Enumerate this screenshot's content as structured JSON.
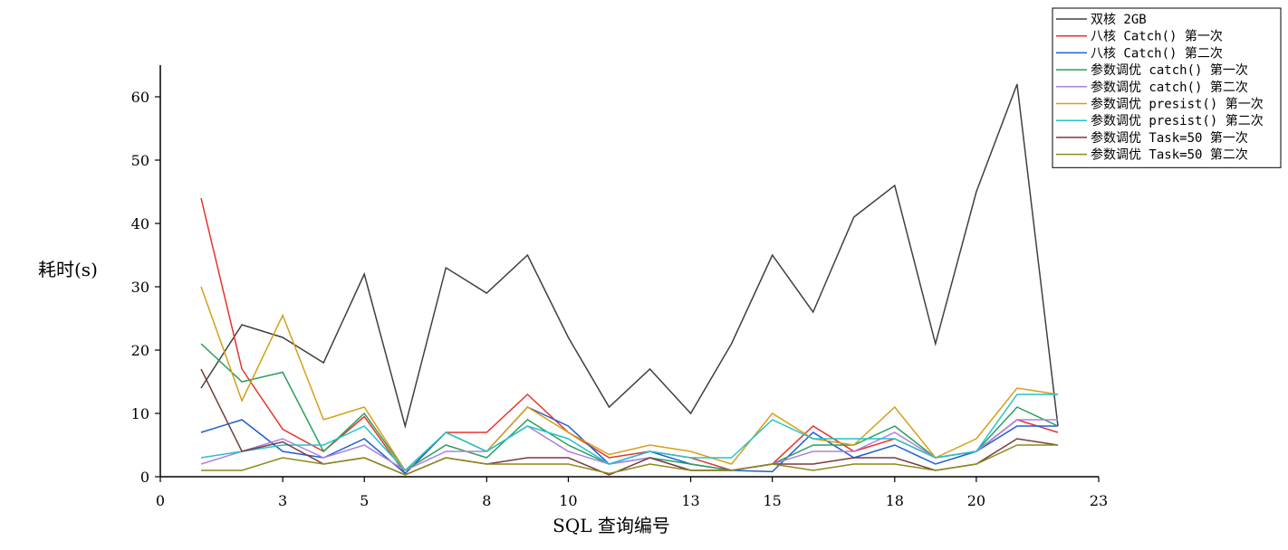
{
  "chart_data": {
    "type": "line",
    "title": "",
    "xlabel": "SQL 查询编号",
    "ylabel": "耗时(s)",
    "xlim": [
      0,
      23
    ],
    "ylim": [
      0,
      65
    ],
    "x_ticks": [
      0,
      3,
      5,
      8,
      10,
      13,
      15,
      18,
      20,
      23
    ],
    "y_ticks": [
      0,
      10,
      20,
      30,
      40,
      50,
      60
    ],
    "grid": false,
    "legend_position": "top-right",
    "x": [
      1,
      2,
      3,
      4,
      5,
      6,
      7,
      8,
      9,
      10,
      11,
      12,
      13,
      14,
      15,
      16,
      17,
      18,
      19,
      20,
      21,
      22
    ],
    "series": [
      {
        "name": "双核 2GB",
        "color": "#404040",
        "values": [
          14,
          24,
          22,
          18,
          32,
          8,
          33,
          29,
          35,
          22,
          11,
          17,
          10,
          21,
          35,
          26,
          41,
          46,
          21,
          45,
          62,
          8
        ]
      },
      {
        "name": "八核 Catch() 第一次",
        "color": "#e8332b",
        "values": [
          44,
          17,
          7.5,
          4,
          9.5,
          0.5,
          7,
          7,
          13,
          7,
          3,
          4,
          3,
          1,
          2,
          8,
          4,
          6,
          3,
          4,
          9,
          7
        ]
      },
      {
        "name": "八核 Catch() 第二次",
        "color": "#1f5fd0",
        "values": [
          7,
          9,
          4,
          3,
          6,
          0.5,
          7,
          4,
          11,
          8,
          2,
          4,
          2,
          1,
          0.8,
          7,
          3,
          5,
          2,
          4,
          8,
          8
        ]
      },
      {
        "name": "参数调优 catch() 第一次",
        "color": "#2aa05a",
        "values": [
          21,
          15,
          16.5,
          4,
          10,
          1,
          5,
          3,
          9,
          5,
          2,
          3,
          2,
          1,
          2,
          5,
          5,
          8,
          3,
          4,
          11,
          8
        ]
      },
      {
        "name": "参数调优 catch() 第二次",
        "color": "#b07ee0",
        "values": [
          2,
          4,
          6,
          3,
          5,
          1,
          4,
          4,
          8,
          4,
          2,
          3,
          1,
          1,
          2,
          4,
          4,
          7,
          3,
          4,
          9,
          9
        ]
      },
      {
        "name": "参数调优 presist() 第一次",
        "color": "#d4a017",
        "values": [
          30,
          12,
          25.5,
          9,
          11,
          1,
          7,
          4,
          11,
          7,
          3.5,
          5,
          4,
          2,
          10,
          6,
          5,
          11,
          3,
          6,
          14,
          13
        ]
      },
      {
        "name": "参数调优 presist() 第二次",
        "color": "#22c4cc",
        "values": [
          3,
          4,
          5,
          5,
          8,
          1,
          7,
          4,
          8,
          6,
          2,
          4,
          3,
          3,
          9,
          6,
          6,
          6,
          3,
          4,
          13,
          13
        ]
      },
      {
        "name": "参数调优 Task=50 第一次",
        "color": "#7a3b3b",
        "values": [
          17,
          4,
          5.5,
          2,
          3,
          0.3,
          3,
          2,
          3,
          3,
          0.3,
          3,
          1,
          1,
          2,
          2,
          3,
          3,
          1,
          2,
          6,
          5
        ]
      },
      {
        "name": "参数调优 Task=50 第二次",
        "color": "#8a8a1a",
        "values": [
          1,
          1,
          3,
          2,
          3,
          0.3,
          3,
          2,
          2,
          2,
          0.5,
          2,
          1,
          1,
          2,
          1,
          2,
          2,
          1,
          2,
          5,
          5
        ]
      }
    ]
  }
}
